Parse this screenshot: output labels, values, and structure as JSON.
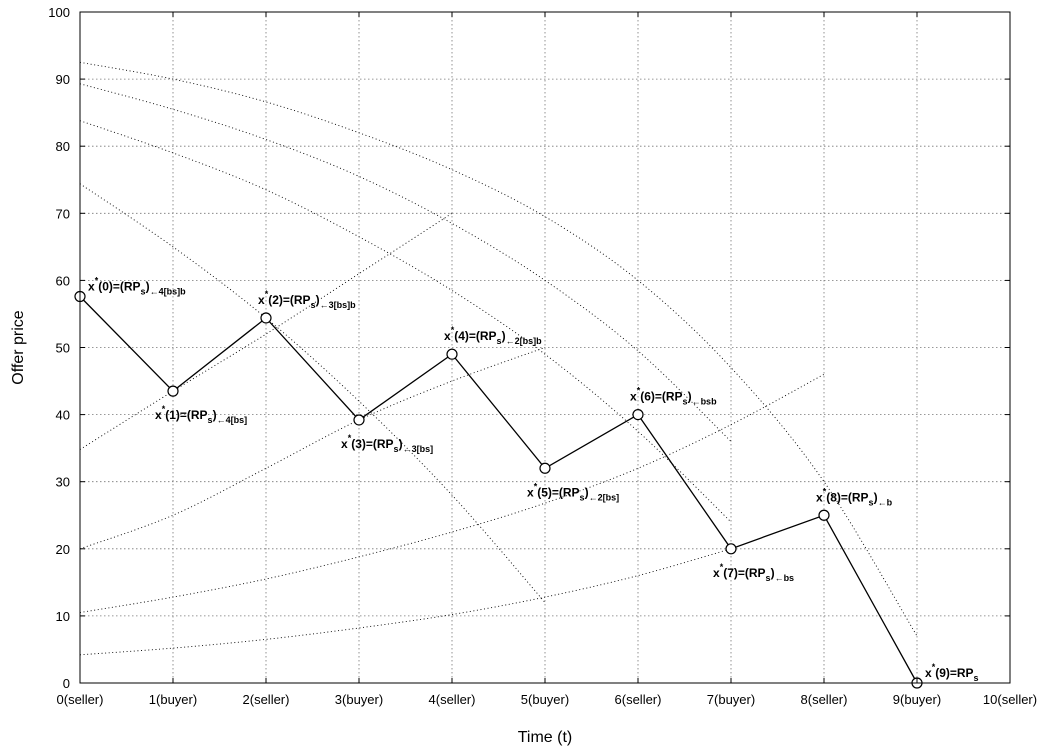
{
  "chart_data": {
    "type": "line",
    "title": "",
    "xlabel": "Time (t)",
    "ylabel": "Offer price",
    "xlim": [
      0,
      10
    ],
    "ylim": [
      0,
      100
    ],
    "grid": true,
    "x_tick_labels": [
      "0(seller)",
      "1(buyer)",
      "2(seller)",
      "3(buyer)",
      "4(seller)",
      "5(buyer)",
      "6(seller)",
      "7(buyer)",
      "8(seller)",
      "9(buyer)",
      "10(seller)"
    ],
    "y_ticks": [
      0,
      10,
      20,
      30,
      40,
      50,
      60,
      70,
      80,
      90,
      100
    ],
    "series": [
      {
        "style": "solid-with-circle-markers",
        "x": [
          0,
          1,
          2,
          3,
          4,
          5,
          6,
          7,
          8,
          9
        ],
        "y": [
          57.6,
          43.5,
          54.4,
          39.2,
          49.0,
          32.0,
          40.0,
          20.0,
          25.0,
          0.0
        ]
      }
    ],
    "dotted_curves": [
      {
        "style": "dotted",
        "x": [
          0,
          1,
          2,
          3,
          4,
          5,
          6,
          7
        ],
        "y": [
          4.2,
          5.2,
          6.5,
          8.2,
          10.2,
          12.8,
          16.0,
          20.0
        ]
      },
      {
        "style": "dotted",
        "x": [
          0,
          1,
          2,
          3,
          4,
          5,
          6,
          7,
          8
        ],
        "y": [
          10.5,
          12.8,
          15.5,
          18.8,
          22.5,
          26.8,
          32.0,
          38.5,
          46.0
        ]
      },
      {
        "style": "dotted",
        "x": [
          0,
          1,
          2,
          3,
          4,
          5
        ],
        "y": [
          20.0,
          25.0,
          32.0,
          39.2,
          45.0,
          50.0
        ]
      },
      {
        "style": "dotted",
        "x": [
          0,
          1,
          2,
          3,
          4
        ],
        "y": [
          34.8,
          43.5,
          52.0,
          61.0,
          70.0
        ]
      },
      {
        "style": "dotted",
        "x": [
          0,
          1,
          2,
          3,
          4,
          5
        ],
        "y": [
          74.4,
          65.0,
          54.4,
          42.0,
          28.0,
          12.0
        ]
      },
      {
        "style": "dotted",
        "x": [
          0,
          1,
          2,
          3,
          4,
          5,
          6,
          7
        ],
        "y": [
          83.8,
          79.0,
          73.5,
          66.5,
          58.5,
          49.0,
          37.5,
          24.0
        ]
      },
      {
        "style": "dotted",
        "x": [
          0,
          1,
          2,
          3,
          4,
          5,
          6,
          7
        ],
        "y": [
          89.3,
          85.5,
          81.0,
          75.5,
          68.5,
          60.0,
          49.5,
          36.0
        ]
      },
      {
        "style": "dotted",
        "x": [
          0,
          1,
          2,
          3,
          4,
          5,
          6,
          7,
          8,
          9
        ],
        "y": [
          92.5,
          90.0,
          86.6,
          82.0,
          76.5,
          69.5,
          60.0,
          47.0,
          30.0,
          7.0
        ]
      }
    ],
    "annotations": [
      {
        "base": "x",
        "sup": "*",
        "main": "(0)=(RP",
        "sub1": "s",
        "close": ")",
        "sub2": "←4[bs]b",
        "x": 0,
        "y": 57.6,
        "pos": "upper-right"
      },
      {
        "base": "x",
        "sup": "*",
        "main": "(1)=(RP",
        "sub1": "s",
        "close": ")",
        "sub2": "←4[bs]",
        "x": 1,
        "y": 43.5,
        "pos": "lower"
      },
      {
        "base": "x",
        "sup": "*",
        "main": "(2)=(RP",
        "sub1": "s",
        "close": ")",
        "sub2": "←3[bs]b",
        "x": 2,
        "y": 54.4,
        "pos": "upper"
      },
      {
        "base": "x",
        "sup": "*",
        "main": "(3)=(RP",
        "sub1": "s",
        "close": ")",
        "sub2": "←3[bs]",
        "x": 3,
        "y": 39.2,
        "pos": "lower"
      },
      {
        "base": "x",
        "sup": "*",
        "main": "(4)=(RP",
        "sub1": "s",
        "close": ")",
        "sub2": "←2[bs]b",
        "x": 4,
        "y": 49.0,
        "pos": "upper"
      },
      {
        "base": "x",
        "sup": "*",
        "main": "(5)=(RP",
        "sub1": "s",
        "close": ")",
        "sub2": "←2[bs]",
        "x": 5,
        "y": 32.0,
        "pos": "lower"
      },
      {
        "base": "x",
        "sup": "*",
        "main": "(6)=(RP",
        "sub1": "s",
        "close": ")",
        "sub2": "←bsb",
        "x": 6,
        "y": 40.0,
        "pos": "upper"
      },
      {
        "base": "x",
        "sup": "*",
        "main": "(7)=(RP",
        "sub1": "s",
        "close": ")",
        "sub2": "←bs",
        "x": 7,
        "y": 20.0,
        "pos": "lower"
      },
      {
        "base": "x",
        "sup": "*",
        "main": "(8)=(RP",
        "sub1": "s",
        "close": ")",
        "sub2": "←b",
        "x": 8,
        "y": 25.0,
        "pos": "upper"
      },
      {
        "base": "x",
        "sup": "*",
        "main": "(9)=RP",
        "sub1": "s",
        "close": "",
        "sub2": "",
        "x": 9,
        "y": 0.0,
        "pos": "upper-right"
      }
    ]
  }
}
